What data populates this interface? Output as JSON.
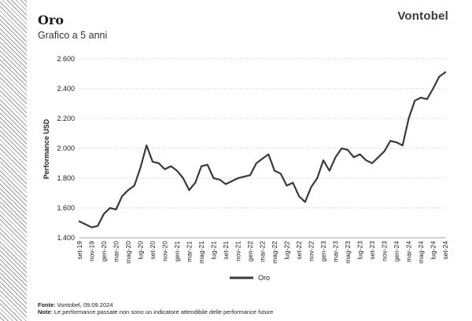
{
  "header": {
    "title": "Oro",
    "subtitle": "Grafico a 5 anni",
    "brand": "Vontobel"
  },
  "footer": {
    "source_label": "Fonte",
    "source_text": ": Vontobel, 09.09.2024",
    "note_label": "Note",
    "note_text": ": Le performance passate non sono un indicatore attendibile delle performance future"
  },
  "chart_data": {
    "type": "line",
    "title": "",
    "ylabel": "Performance USD",
    "xlabel": "",
    "ylim": [
      1400,
      2600
    ],
    "yticks": [
      1400,
      1600,
      1800,
      2000,
      2200,
      2400,
      2600
    ],
    "ytick_labels": [
      "1.400",
      "1.600",
      "1.800",
      "2.000",
      "2.200",
      "2.400",
      "2.600"
    ],
    "grid": true,
    "legend": "bottom-center",
    "line_color": "#3a3a3a",
    "x_tick_labels": [
      "set-19",
      "nov-19",
      "gen-20",
      "mar-20",
      "mag-20",
      "lug-20",
      "set-20",
      "nov-20",
      "gen-21",
      "mar-21",
      "mag-21",
      "lug-21",
      "set-21",
      "nov-21",
      "gen-22",
      "mar-22",
      "mag-22",
      "lug-22",
      "set-22",
      "nov-22",
      "gen-23",
      "mar-23",
      "mag-23",
      "lug-23",
      "set-23",
      "nov-23",
      "gen-24",
      "mar-24",
      "mag-24",
      "lug-24",
      "set-24"
    ],
    "series": [
      {
        "name": "Oro",
        "x": [
          "2019-09",
          "2019-10",
          "2019-11",
          "2019-12",
          "2020-01",
          "2020-02",
          "2020-03",
          "2020-04",
          "2020-05",
          "2020-06",
          "2020-07",
          "2020-08",
          "2020-09",
          "2020-10",
          "2020-11",
          "2020-12",
          "2021-01",
          "2021-02",
          "2021-03",
          "2021-04",
          "2021-05",
          "2021-06",
          "2021-07",
          "2021-08",
          "2021-09",
          "2021-10",
          "2021-11",
          "2021-12",
          "2022-01",
          "2022-02",
          "2022-03",
          "2022-04",
          "2022-05",
          "2022-06",
          "2022-07",
          "2022-08",
          "2022-09",
          "2022-10",
          "2022-11",
          "2022-12",
          "2023-01",
          "2023-02",
          "2023-03",
          "2023-04",
          "2023-05",
          "2023-06",
          "2023-07",
          "2023-08",
          "2023-09",
          "2023-10",
          "2023-11",
          "2023-12",
          "2024-01",
          "2024-02",
          "2024-03",
          "2024-04",
          "2024-05",
          "2024-06",
          "2024-07",
          "2024-08",
          "2024-09"
        ],
        "values": [
          1510,
          1490,
          1470,
          1480,
          1560,
          1600,
          1590,
          1680,
          1720,
          1750,
          1870,
          2020,
          1910,
          1900,
          1860,
          1880,
          1850,
          1800,
          1720,
          1770,
          1880,
          1890,
          1800,
          1790,
          1760,
          1780,
          1800,
          1810,
          1820,
          1900,
          1930,
          1960,
          1850,
          1830,
          1750,
          1770,
          1680,
          1640,
          1740,
          1800,
          1920,
          1850,
          1940,
          2000,
          1990,
          1940,
          1960,
          1920,
          1900,
          1940,
          1980,
          2050,
          2040,
          2020,
          2200,
          2320,
          2340,
          2330,
          2400,
          2480,
          2510
        ]
      }
    ]
  }
}
